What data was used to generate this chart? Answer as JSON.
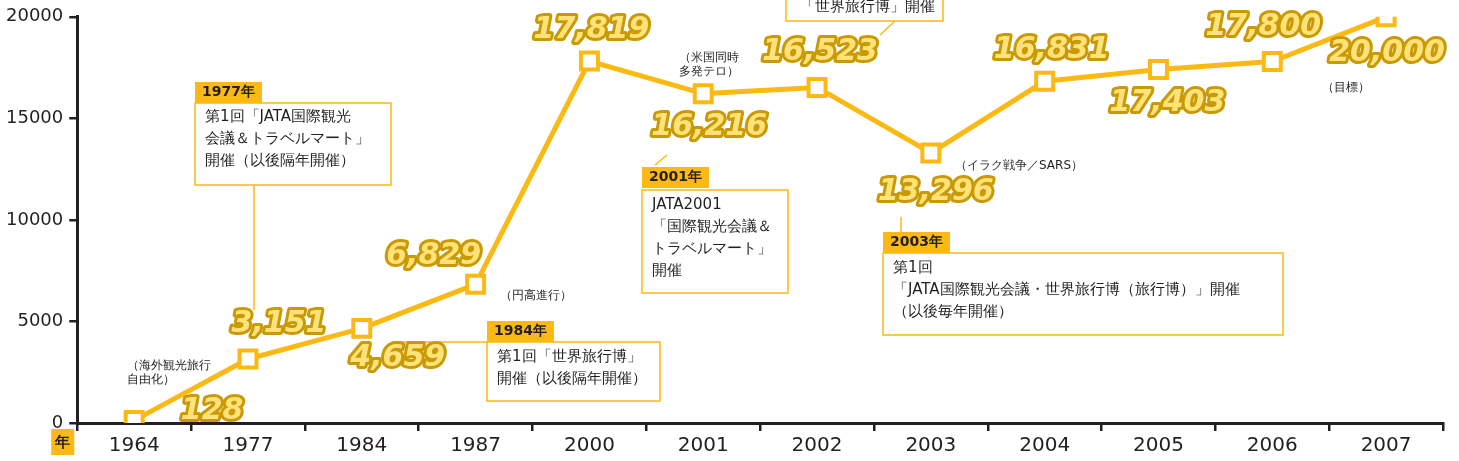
{
  "chart_data": {
    "type": "line",
    "xlabel": "年",
    "categories": [
      "1964",
      "1977",
      "1984",
      "1987",
      "2000",
      "2001",
      "2002",
      "2003",
      "2004",
      "2005",
      "2006",
      "2007"
    ],
    "series": [
      {
        "color": "#fcb813",
        "values": [
          128,
          3151,
          4659,
          6829,
          17819,
          16216,
          16523,
          13296,
          16831,
          17403,
          17800,
          20000
        ],
        "value_labels": [
          "128",
          "3,151",
          "4,659",
          "6,829",
          "17,819",
          "16,216",
          "16,523",
          "13,296",
          "16,831",
          "17,403",
          "17,800",
          "20,000"
        ]
      }
    ],
    "ylim": [
      0,
      20000
    ],
    "yticks": [
      0,
      5000,
      10000,
      15000,
      20000
    ],
    "grid": false,
    "legend": false,
    "marker": "square",
    "line_style": "solid",
    "annotations": [
      "「世界旅行博」開催",
      "（米国同時",
      "多発テロ）",
      "（目標）",
      "1977年",
      "第1回「JATA国際観光",
      "会議＆トラベルマート」",
      "開催（以後隔年開催）",
      "2001年",
      "JATA2001",
      "「国際観光会議＆",
      "トラベルマート」",
      "開催",
      "（イラク戦争／SARS）",
      "2003年",
      "第1回",
      "「JATA国際観光会議・世界旅行博（旅行博）」開催",
      "（以後毎年開催）",
      "（円高進行）",
      "1984年",
      "第1回「世界旅行博」",
      "開催（以後隔年開催）",
      "（海外観光旅行",
      "自由化）"
    ]
  }
}
